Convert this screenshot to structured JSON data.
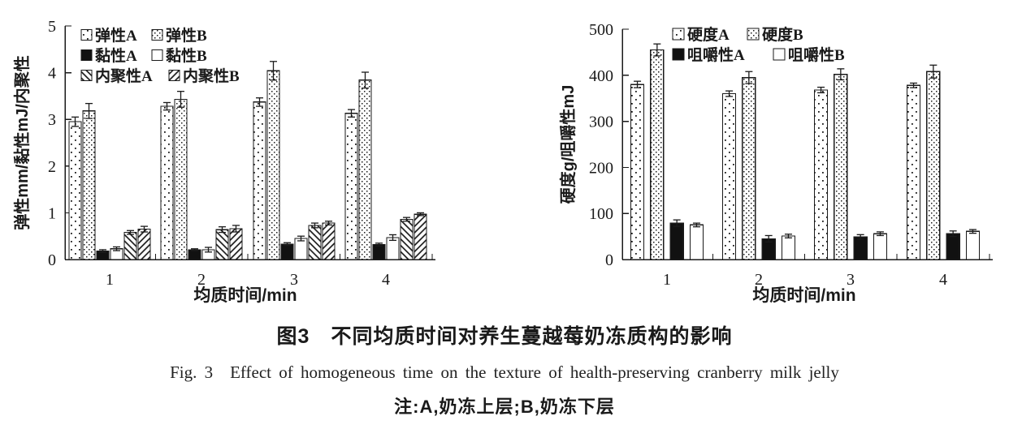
{
  "figure": {
    "caption_zh": "图3 不同均质时间对养生蔓越莓奶冻质构的影响",
    "caption_en": "Fig. 3 Effect of homogeneous time on the texture of health-preserving cranberry milk jelly",
    "note": "注:A,奶冻上层;B,奶冻下层"
  },
  "colors": {
    "ink": "#1a1a1a",
    "bar_fill_black": "#111111",
    "background": "#ffffff"
  },
  "chart_data": [
    {
      "type": "bar",
      "title": "",
      "xlabel": "均质时间/min",
      "ylabel": "弹性mm/黏性mJ/内聚性",
      "categories": [
        "1",
        "2",
        "3",
        "4"
      ],
      "ylim": [
        0,
        5
      ],
      "yticks": [
        0,
        1,
        2,
        3,
        4,
        5
      ],
      "grid": false,
      "error_bars": true,
      "legend_position": "top-left-inside",
      "legend_columns": 2,
      "series": [
        {
          "name": "弹性A",
          "pattern": "dots-sparse",
          "values": [
            2.95,
            3.28,
            3.37,
            3.13
          ],
          "errors": [
            0.1,
            0.08,
            0.09,
            0.08
          ]
        },
        {
          "name": "弹性B",
          "pattern": "dots-dense",
          "values": [
            3.18,
            3.43,
            4.04,
            3.84
          ],
          "errors": [
            0.16,
            0.17,
            0.2,
            0.17
          ]
        },
        {
          "name": "黏性A",
          "pattern": "solid-black",
          "values": [
            0.18,
            0.21,
            0.33,
            0.32
          ],
          "errors": [
            0.03,
            0.02,
            0.03,
            0.03
          ]
        },
        {
          "name": "黏性B",
          "pattern": "open-white",
          "values": [
            0.23,
            0.21,
            0.45,
            0.47
          ],
          "errors": [
            0.04,
            0.05,
            0.05,
            0.06
          ]
        },
        {
          "name": "内聚性A",
          "pattern": "hatch-back",
          "values": [
            0.58,
            0.64,
            0.73,
            0.86
          ],
          "errors": [
            0.04,
            0.06,
            0.05,
            0.04
          ]
        },
        {
          "name": "内聚性B",
          "pattern": "hatch-fwd",
          "values": [
            0.65,
            0.66,
            0.78,
            0.97
          ],
          "errors": [
            0.06,
            0.07,
            0.04,
            0.03
          ]
        }
      ]
    },
    {
      "type": "bar",
      "title": "",
      "xlabel": "均质时间/min",
      "ylabel": "硬度g/咀嚼性mJ",
      "categories": [
        "1",
        "2",
        "3",
        "4"
      ],
      "ylim": [
        0,
        500
      ],
      "yticks": [
        0,
        100,
        200,
        300,
        400,
        500
      ],
      "grid": false,
      "error_bars": true,
      "legend_position": "top-left-inside",
      "legend_columns": 2,
      "series": [
        {
          "name": "硬度A",
          "pattern": "dots-sparse",
          "values": [
            380,
            360,
            368,
            378
          ],
          "errors": [
            7,
            6,
            6,
            5
          ]
        },
        {
          "name": "硬度B",
          "pattern": "dots-dense",
          "values": [
            455,
            395,
            402,
            408
          ],
          "errors": [
            13,
            13,
            12,
            14
          ]
        },
        {
          "name": "咀嚼性A",
          "pattern": "solid-black",
          "values": [
            79,
            45,
            49,
            56
          ],
          "errors": [
            7,
            7,
            5,
            6
          ]
        },
        {
          "name": "咀嚼性B",
          "pattern": "open-white",
          "values": [
            75,
            51,
            56,
            61
          ],
          "errors": [
            4,
            4,
            4,
            4
          ]
        }
      ]
    }
  ]
}
